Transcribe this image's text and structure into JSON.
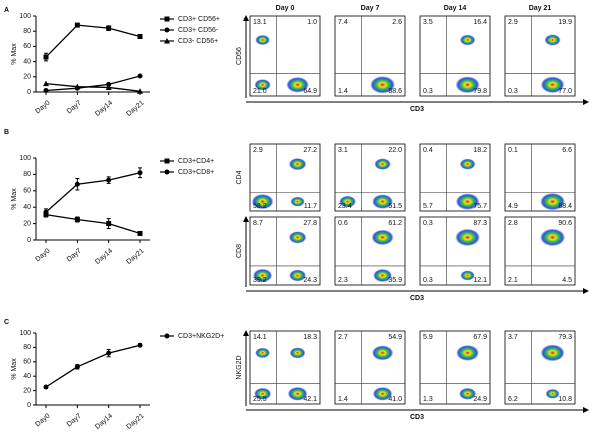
{
  "panels": [
    "A",
    "B",
    "C"
  ],
  "chart_data": [
    {
      "type": "line",
      "y_label": "% Max",
      "categories": [
        "Day0",
        "Day7",
        "Day14",
        "Day21"
      ],
      "ylim": [
        0,
        100
      ],
      "yticks": [
        0,
        20,
        40,
        60,
        80,
        100
      ],
      "series": [
        {
          "name": "CD3+ CD56+",
          "marker": "square",
          "color": "#000000",
          "values": [
            46,
            88,
            84,
            73
          ],
          "errors": [
            5,
            1,
            3,
            2
          ]
        },
        {
          "name": "CD3+ CD56-",
          "marker": "circle",
          "color": "#000000",
          "values": [
            2,
            5,
            10,
            21
          ]
        },
        {
          "name": "CD3- CD56+",
          "marker": "triangle",
          "color": "#000000",
          "values": [
            11,
            7,
            6,
            1
          ]
        }
      ]
    },
    {
      "type": "line",
      "y_label": "% Max",
      "categories": [
        "Day0",
        "Day7",
        "Day14",
        "Day21"
      ],
      "ylim": [
        0,
        100
      ],
      "yticks": [
        0,
        20,
        40,
        60,
        80,
        100
      ],
      "series": [
        {
          "name": "CD3+CD4+",
          "marker": "square",
          "color": "#000000",
          "values": [
            31,
            25,
            20,
            8
          ],
          "errors": [
            3,
            3,
            6,
            2
          ]
        },
        {
          "name": "CD3+CD8+",
          "marker": "circle",
          "color": "#000000",
          "values": [
            34,
            68,
            73,
            82
          ],
          "errors": [
            4,
            7,
            4,
            6
          ]
        }
      ]
    },
    {
      "type": "line",
      "y_label": "% Max",
      "categories": [
        "Day0",
        "Day7",
        "Day14",
        "Day21"
      ],
      "ylim": [
        0,
        100
      ],
      "yticks": [
        0,
        20,
        40,
        60,
        80,
        100
      ],
      "series": [
        {
          "name": "CD3+NKG2D+",
          "marker": "circle",
          "color": "#000000",
          "values": [
            25,
            53,
            72,
            83
          ],
          "errors": [
            2,
            3,
            5,
            2
          ]
        }
      ]
    }
  ],
  "flow": {
    "columns": [
      "Day 0",
      "Day 7",
      "Day 14",
      "Day 21"
    ],
    "x_label": "CD3",
    "rows": [
      {
        "label": "CD56",
        "quadrants": [
          [
            "13.1",
            "1.0",
            "21.0",
            "64.9"
          ],
          [
            "7.4",
            "2.6",
            "1.4",
            "88.6"
          ],
          [
            "3.5",
            "16.4",
            "0.3",
            "79.8"
          ],
          [
            "2.9",
            "19.9",
            "0.3",
            "77.0"
          ]
        ]
      },
      {
        "label": "CD4",
        "quadrants": [
          [
            "2.9",
            "27.2",
            "58.2",
            "11.7"
          ],
          [
            "3.1",
            "22.0",
            "23.4",
            "51.5"
          ],
          [
            "0.4",
            "18.2",
            "5.7",
            "75.7"
          ],
          [
            "0.1",
            "6.6",
            "4.9",
            "88.4"
          ]
        ]
      },
      {
        "label": "CD8",
        "quadrants": [
          [
            "8.7",
            "27.8",
            "39.2",
            "24.3"
          ],
          [
            "0.6",
            "61.2",
            "2.3",
            "35.9"
          ],
          [
            "0.3",
            "87.3",
            "0.3",
            "12.1"
          ],
          [
            "2.8",
            "90.6",
            "2.1",
            "4.5"
          ]
        ]
      },
      {
        "label": "NKG2D",
        "quadrants": [
          [
            "14.1",
            "18.3",
            "25.5",
            "42.1"
          ],
          [
            "2.7",
            "54.9",
            "1.4",
            "41.0"
          ],
          [
            "5.9",
            "67.9",
            "1.3",
            "24.9"
          ],
          [
            "3.7",
            "79.3",
            "6.2",
            "10.8"
          ]
        ]
      }
    ]
  }
}
